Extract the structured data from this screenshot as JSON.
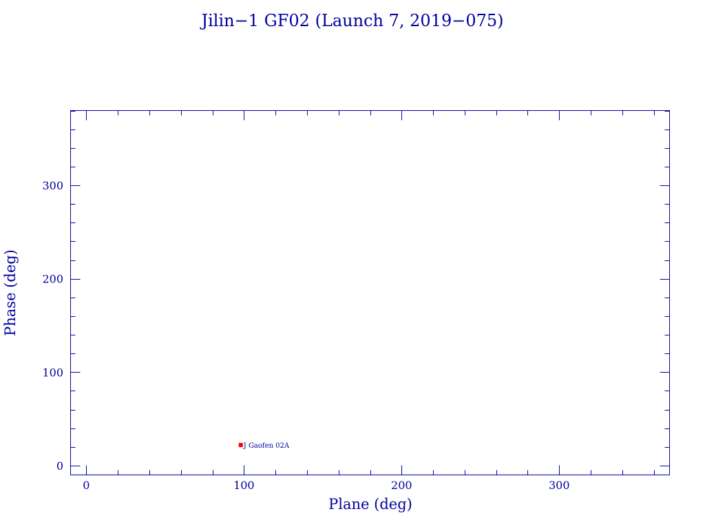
{
  "chart_data": {
    "type": "scatter",
    "title": "Jilin−1 GF02 (Launch 7, 2019−075)",
    "xlabel": "Plane (deg)",
    "ylabel": "Phase (deg)",
    "xlim": [
      -10,
      370
    ],
    "ylim": [
      -10,
      380
    ],
    "x_major_ticks": [
      0,
      100,
      200,
      300
    ],
    "x_minor_step": 20,
    "y_major_ticks": [
      0,
      100,
      200,
      300
    ],
    "y_minor_step": 20,
    "x_tick_labels": [
      "0",
      "100",
      "200",
      "300"
    ],
    "y_tick_labels": [
      "0",
      "100",
      "200",
      "300"
    ],
    "grid": false,
    "points": [
      {
        "x": 98,
        "y": 22,
        "label": "J Gaofen 02A",
        "color": "#ff0000"
      }
    ]
  },
  "colors": {
    "axis": "#0000a0",
    "point": "#ff0000"
  }
}
